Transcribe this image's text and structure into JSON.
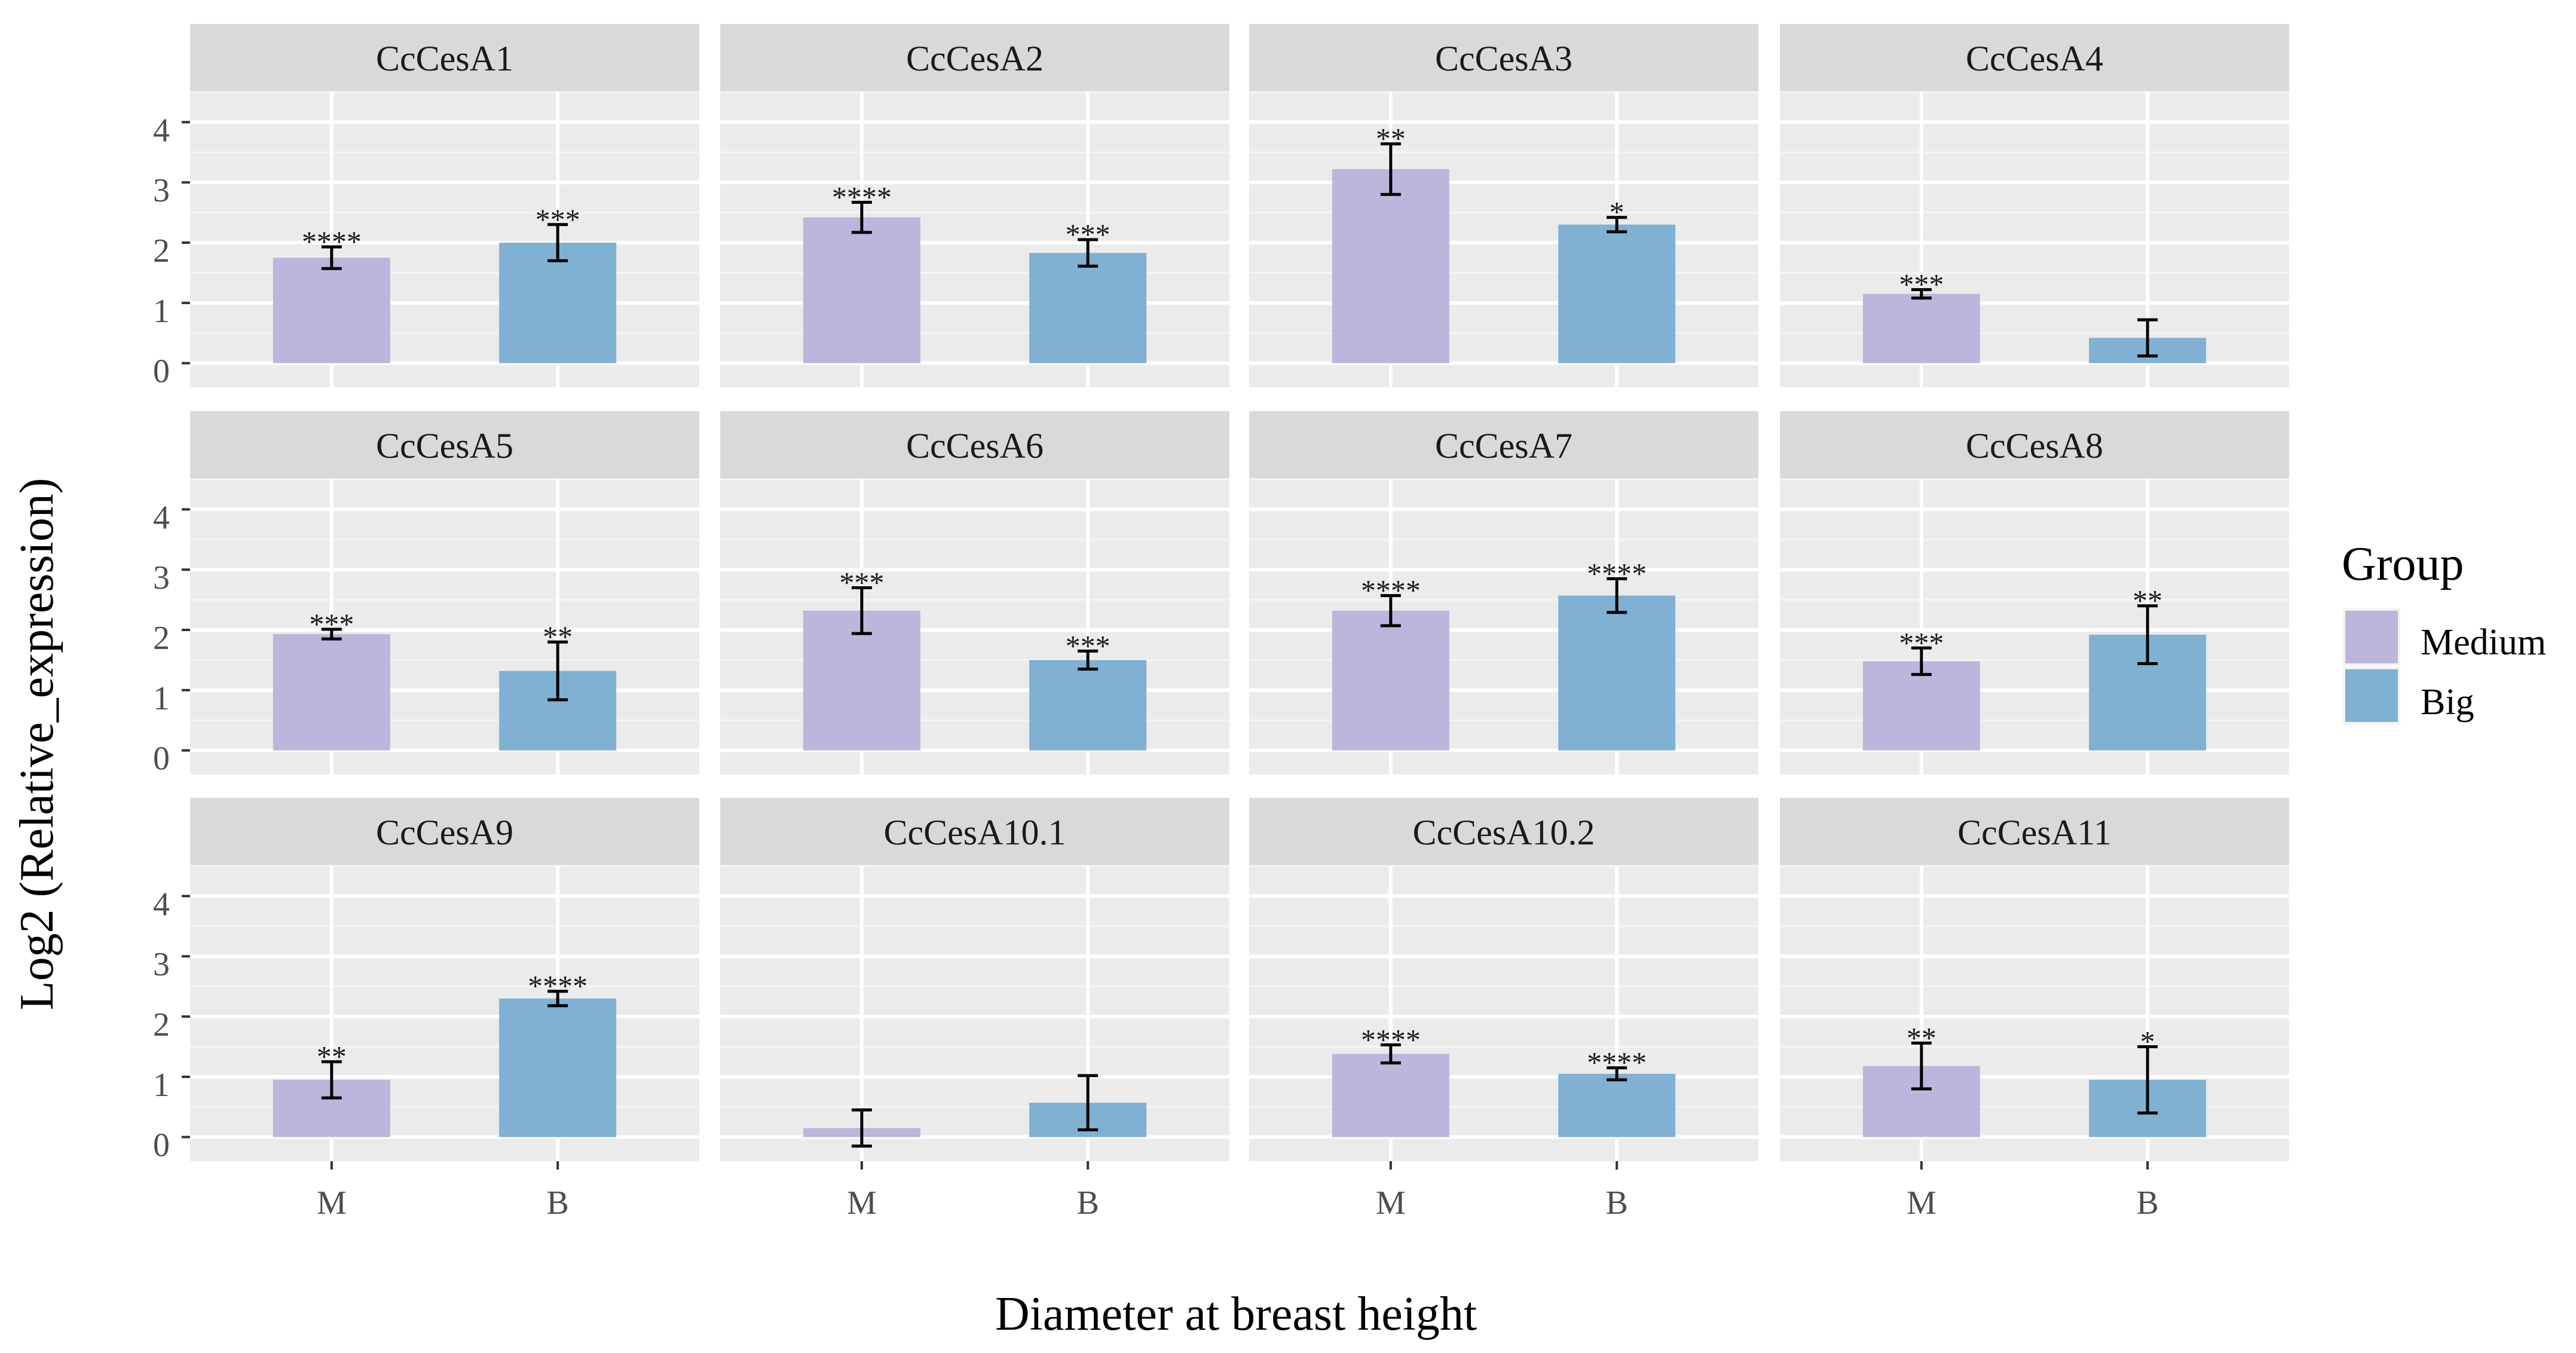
{
  "chart_data": {
    "type": "bar",
    "layout": "faceted 3x4 grid",
    "xlabel": "Diameter at breast height",
    "ylabel": "Log2 (Relative_expression)",
    "ylim": [
      -0.4,
      4.5
    ],
    "yticks": [
      "0",
      "1",
      "2",
      "3",
      "4"
    ],
    "categories": [
      "M",
      "B"
    ],
    "legend": {
      "title": "Group",
      "position": "right",
      "entries": [
        {
          "name": "Medium",
          "color": "#bcb5dc"
        },
        {
          "name": "Big",
          "color": "#80b1d3"
        }
      ]
    },
    "colors": {
      "panel_bg": "#ebebeb",
      "strip_bg": "#d9d9d9",
      "grid_major": "#ffffff",
      "medium": "#bcb5dc",
      "big": "#80b1d3"
    },
    "facets": [
      {
        "label": "CcCesA1",
        "values": [
          1.75,
          2.0
        ],
        "errors": [
          0.18,
          0.3
        ],
        "sig": [
          "****",
          "***"
        ]
      },
      {
        "label": "CcCesA2",
        "values": [
          2.42,
          1.83
        ],
        "errors": [
          0.25,
          0.22
        ],
        "sig": [
          "****",
          "***"
        ]
      },
      {
        "label": "CcCesA3",
        "values": [
          3.22,
          2.3
        ],
        "errors": [
          0.42,
          0.12
        ],
        "sig": [
          "**",
          "*"
        ]
      },
      {
        "label": "CcCesA4",
        "values": [
          1.15,
          0.42
        ],
        "errors": [
          0.07,
          0.3
        ],
        "sig": [
          "***",
          ""
        ]
      },
      {
        "label": "CcCesA5",
        "values": [
          1.93,
          1.32
        ],
        "errors": [
          0.08,
          0.48
        ],
        "sig": [
          "***",
          "**"
        ]
      },
      {
        "label": "CcCesA6",
        "values": [
          2.32,
          1.5
        ],
        "errors": [
          0.38,
          0.15
        ],
        "sig": [
          "***",
          "***"
        ]
      },
      {
        "label": "CcCesA7",
        "values": [
          2.32,
          2.57
        ],
        "errors": [
          0.25,
          0.28
        ],
        "sig": [
          "****",
          "****"
        ]
      },
      {
        "label": "CcCesA8",
        "values": [
          1.48,
          1.92
        ],
        "errors": [
          0.22,
          0.48
        ],
        "sig": [
          "***",
          "**"
        ]
      },
      {
        "label": "CcCesA9",
        "values": [
          0.95,
          2.3
        ],
        "errors": [
          0.3,
          0.12
        ],
        "sig": [
          "**",
          "****"
        ]
      },
      {
        "label": "CcCesA10.1",
        "values": [
          0.15,
          0.57
        ],
        "errors": [
          0.3,
          0.45
        ],
        "sig": [
          "",
          ""
        ]
      },
      {
        "label": "CcCesA10.2",
        "values": [
          1.38,
          1.05
        ],
        "errors": [
          0.15,
          0.1
        ],
        "sig": [
          "****",
          "****"
        ]
      },
      {
        "label": "CcCesA11",
        "values": [
          1.18,
          0.95
        ],
        "errors": [
          0.38,
          0.55
        ],
        "sig": [
          "**",
          "*"
        ]
      }
    ]
  }
}
